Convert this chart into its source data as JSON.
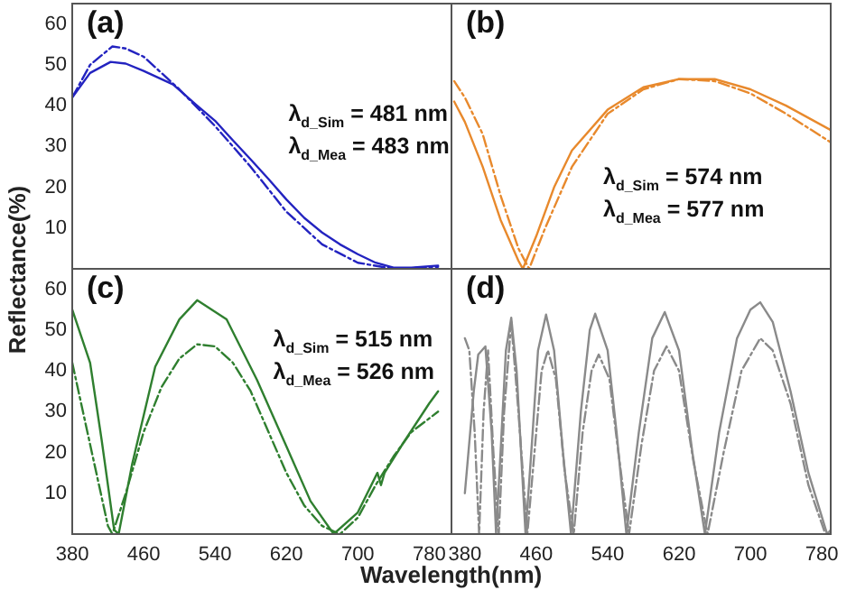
{
  "chart_data": [
    {
      "type": "line",
      "title": "(a)",
      "ylabel": "Reflectance(%)",
      "xlim": [
        380,
        805
      ],
      "ylim": [
        0,
        65
      ],
      "xticks": [
        380,
        460,
        540,
        620,
        700,
        780
      ],
      "yticks": [
        10,
        20,
        30,
        40,
        50,
        60
      ],
      "tick_labels": "y",
      "legend": false,
      "marker": "none",
      "annotations": [
        "λ$_{d_Sim}$ = 481 nm",
        "λ$_{d_Mea}$ = 483 nm"
      ],
      "series": [
        {
          "color": "#2323c0",
          "line_style": "solid",
          "x": [
            380,
            400,
            423,
            440,
            460,
            493,
            520,
            540,
            560,
            580,
            600,
            620,
            640,
            660,
            680,
            700,
            720,
            740,
            760,
            790
          ],
          "values": [
            42,
            48,
            50.7,
            50.3,
            48.5,
            45.2,
            40,
            36.3,
            31.5,
            26.8,
            22,
            17,
            12.5,
            8.9,
            6,
            3.6,
            1.5,
            0.3,
            0.3,
            0.8
          ]
        },
        {
          "color": "#2323c0",
          "line_style": "dashed",
          "x": [
            380,
            400,
            425,
            440,
            460,
            480,
            500,
            540,
            580,
            620,
            660,
            700,
            740,
            790
          ],
          "values": [
            42,
            50,
            54.5,
            54,
            52,
            48,
            44,
            35,
            25,
            14,
            6,
            1.5,
            0,
            0.5
          ]
        }
      ]
    },
    {
      "type": "line",
      "title": "(b)",
      "xlim": [
        365,
        790
      ],
      "ylim": [
        0,
        65
      ],
      "xticks": [
        380,
        460,
        540,
        620,
        700,
        780
      ],
      "yticks": [
        10,
        20,
        30,
        40,
        50,
        60
      ],
      "tick_labels": false,
      "legend": false,
      "marker": "none",
      "annotations": [
        "λ$_{d_Sim}$ = 574 nm",
        "λ$_{d_Mea}$ = 577 nm"
      ],
      "series": [
        {
          "color": "#e8892c",
          "line_style": "solid",
          "x": [
            368,
            380,
            400,
            420,
            440,
            445,
            460,
            480,
            500,
            540,
            580,
            620,
            660,
            700,
            740,
            790
          ],
          "values": [
            41,
            36,
            25,
            12,
            2,
            0,
            8,
            20,
            29,
            39,
            44.5,
            46.5,
            46.5,
            44,
            40,
            34
          ]
        },
        {
          "color": "#e8892c",
          "line_style": "dashed",
          "x": [
            368,
            380,
            400,
            420,
            440,
            452,
            470,
            500,
            540,
            580,
            620,
            660,
            700,
            740,
            790
          ],
          "values": [
            46,
            42,
            33,
            18,
            5,
            0,
            10,
            25,
            38,
            44,
            46.5,
            46,
            43,
            38,
            31
          ]
        }
      ]
    },
    {
      "type": "line",
      "title": "(c)",
      "xlabel": "Wavelength(nm)",
      "xlim": [
        380,
        805
      ],
      "ylim": [
        0,
        65
      ],
      "xticks": [
        380,
        460,
        540,
        620,
        700,
        780
      ],
      "yticks": [
        10,
        20,
        30,
        40,
        50,
        60
      ],
      "legend": false,
      "marker": "none",
      "annotations": [
        "λ$_{d_Sim}$ = 515 nm",
        "λ$_{d_Mea}$ = 526 nm"
      ],
      "series": [
        {
          "color": "#2f7f2f",
          "line_style": "solid",
          "x": [
            380,
            400,
            413,
            427,
            432,
            447,
            473,
            500,
            520,
            553,
            587,
            620,
            647,
            673,
            700,
            722,
            726,
            730,
            750,
            780,
            790
          ],
          "values": [
            55,
            42,
            23,
            1,
            0,
            17,
            41,
            52.6,
            57.3,
            52.6,
            37.8,
            21.5,
            8.1,
            0,
            5.3,
            15,
            12,
            15,
            22,
            32,
            35
          ]
        },
        {
          "color": "#2f7f2f",
          "line_style": "dashed",
          "x": [
            380,
            400,
            420,
            425,
            440,
            460,
            480,
            500,
            520,
            540,
            560,
            580,
            600,
            620,
            640,
            660,
            680,
            700,
            720,
            740,
            760,
            790
          ],
          "values": [
            42,
            22,
            2,
            0,
            10,
            25,
            36,
            43,
            46.5,
            46,
            42,
            35,
            25,
            15,
            7,
            2,
            0,
            4,
            12,
            19,
            25,
            30
          ]
        }
      ]
    },
    {
      "type": "line",
      "title": "(d)",
      "xlim": [
        365,
        790
      ],
      "ylim": [
        0,
        65
      ],
      "xticks": [
        380,
        460,
        540,
        620,
        700,
        780
      ],
      "yticks": [
        10,
        20,
        30,
        40,
        50,
        60
      ],
      "tick_labels": "x",
      "legend": false,
      "marker": "none",
      "series": [
        {
          "color": "#8a8a8a",
          "line_style": "solid",
          "x": [
            380,
            390,
            395,
            403,
            410,
            415,
            420,
            426,
            432,
            438,
            448,
            456,
            462,
            471,
            480,
            490,
            499,
            510,
            520,
            526,
            540,
            550,
            561,
            575,
            590,
            604,
            620,
            635,
            649,
            665,
            685,
            700,
            711,
            725,
            745,
            765,
            786,
            790
          ],
          "values": [
            10,
            35,
            44,
            46,
            25,
            0,
            20,
            45,
            53,
            40,
            0,
            25,
            45,
            53.8,
            45,
            20,
            0,
            30,
            50,
            54,
            45,
            25,
            0,
            25,
            48,
            54.4,
            45,
            20,
            0,
            25,
            48,
            55,
            56.8,
            52,
            35,
            15,
            0,
            1
          ]
        },
        {
          "color": "#8a8a8a",
          "line_style": "dashed",
          "x": [
            380,
            385,
            391,
            396,
            401,
            406,
            412,
            418,
            424,
            432,
            440,
            450,
            458,
            466,
            473,
            482,
            492,
            502,
            512,
            522,
            530,
            542,
            552,
            564,
            578,
            592,
            606,
            620,
            636,
            652,
            670,
            690,
            711,
            725,
            745,
            765,
            784,
            790
          ],
          "values": [
            48,
            45,
            25,
            0,
            30,
            45,
            20,
            0,
            30,
            52,
            30,
            0,
            20,
            40,
            45,
            38,
            15,
            0,
            25,
            40,
            44,
            38,
            20,
            0,
            22,
            40,
            46,
            40,
            18,
            0,
            20,
            40,
            48,
            45,
            32,
            12,
            0,
            0
          ]
        }
      ]
    }
  ]
}
